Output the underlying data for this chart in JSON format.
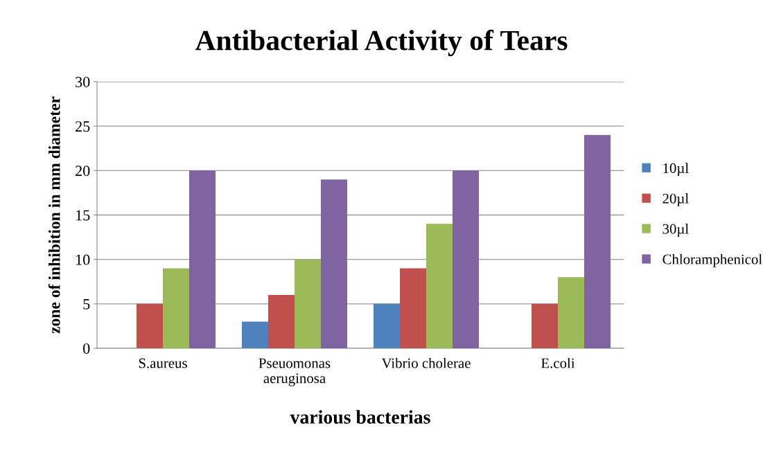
{
  "chart_data": {
    "type": "bar",
    "title": "Antibacterial Activity of Tears",
    "xlabel": "various bacterias",
    "ylabel": "zone of inhibition in mm diameter",
    "categories": [
      "S.aureus",
      "Pseuomonas\naeruginosa",
      "Vibrio cholerae",
      "E.coli"
    ],
    "series": [
      {
        "name": "10µl",
        "color": "#4f81bd",
        "values": [
          0,
          3,
          5,
          0
        ]
      },
      {
        "name": "20µl",
        "color": "#c0504d",
        "values": [
          5,
          6,
          9,
          5
        ]
      },
      {
        "name": "30µl",
        "color": "#9bbb59",
        "values": [
          9,
          10,
          14,
          8
        ]
      },
      {
        "name": "Chloramphenicol",
        "color": "#8064a2",
        "values": [
          20,
          19,
          20,
          24
        ]
      }
    ],
    "ylim": [
      0,
      30
    ],
    "yticks": [
      0,
      5,
      10,
      15,
      20,
      25,
      30
    ],
    "grid": "y",
    "legend": "right"
  }
}
